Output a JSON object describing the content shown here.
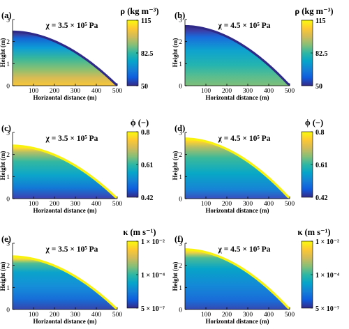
{
  "chart_data": [
    {
      "type": "heatmap",
      "panel_label": "(a)",
      "annotation": "χ = 3.5 × 10⁵ Pa",
      "ylabel": "Height (m)",
      "xlabel": "Horizontal distance (m)",
      "xlim": [
        0,
        500
      ],
      "ylim": [
        0,
        3
      ],
      "xticks": [
        "100",
        "200",
        "300",
        "400",
        "500"
      ],
      "yticks": [
        "0",
        "1",
        "2",
        "3"
      ],
      "surface_height": 2.45,
      "field": "density",
      "colorbar": {
        "title": "ρ (kg m⁻³)",
        "ticks": [
          "115",
          "82.5",
          "50"
        ],
        "range": [
          50,
          115
        ]
      }
    },
    {
      "type": "heatmap",
      "panel_label": "(b)",
      "annotation": "χ = 4.5 × 10⁵ Pa",
      "ylabel": "Height (m)",
      "xlabel": "Horizontal distance (m)",
      "xlim": [
        0,
        500
      ],
      "ylim": [
        0,
        3
      ],
      "xticks": [
        "100",
        "200",
        "300",
        "400",
        "500"
      ],
      "yticks": [
        "0",
        "1",
        "2",
        "3"
      ],
      "surface_height": 2.7,
      "field": "density",
      "colorbar": {
        "title": "ρ (kg m⁻³)",
        "ticks": [
          "115",
          "82.5",
          "50"
        ],
        "range": [
          50,
          115
        ]
      }
    },
    {
      "type": "heatmap",
      "panel_label": "(c)",
      "annotation": "χ = 3.5 × 10⁵ Pa",
      "ylabel": "Height (m)",
      "xlabel": "Horizontal distance (m)",
      "xlim": [
        0,
        500
      ],
      "ylim": [
        0,
        3
      ],
      "xticks": [
        "100",
        "200",
        "300",
        "400",
        "500"
      ],
      "yticks": [
        "0",
        "1",
        "2",
        "3"
      ],
      "surface_height": 2.4,
      "field": "porosity",
      "colorbar": {
        "title": "ϕ (−)",
        "ticks": [
          "0.8",
          "0.61",
          "0.42"
        ],
        "range": [
          0.42,
          0.8
        ]
      }
    },
    {
      "type": "heatmap",
      "panel_label": "(d)",
      "annotation": "χ = 4.5 × 10⁵ Pa",
      "ylabel": "Height (m)",
      "xlabel": "Horizontal distance (m)",
      "xlim": [
        0,
        500
      ],
      "ylim": [
        0,
        3
      ],
      "xticks": [
        "100",
        "200",
        "300",
        "400",
        "500"
      ],
      "yticks": [
        "0",
        "1",
        "2",
        "3"
      ],
      "surface_height": 2.72,
      "field": "porosity",
      "colorbar": {
        "title": "ϕ (−)",
        "ticks": [
          "0.8",
          "0.61",
          "0.42"
        ],
        "range": [
          0.42,
          0.8
        ]
      }
    },
    {
      "type": "heatmap",
      "panel_label": "(e)",
      "annotation": "χ = 3.5 × 10⁵ Pa",
      "ylabel": "Height (m)",
      "xlabel": "Horizontal distance (m)",
      "xlim": [
        0,
        500
      ],
      "ylim": [
        0,
        3
      ],
      "xticks": [
        "100",
        "200",
        "300",
        "400",
        "500"
      ],
      "yticks": [
        "0",
        "1",
        "2",
        "3"
      ],
      "surface_height": 2.4,
      "field": "conductivity",
      "colorbar": {
        "title": "κ (m s⁻¹)",
        "ticks": [
          "1 × 10⁻²",
          "1 × 10⁻⁴",
          "5 × 10⁻⁷"
        ],
        "range": [
          5e-07,
          0.01
        ],
        "scale": "log"
      }
    },
    {
      "type": "heatmap",
      "panel_label": "(f)",
      "annotation": "χ = 4.5 × 10⁵ Pa",
      "ylabel": "Height (m)",
      "xlabel": "Horizontal distance (m)",
      "xlim": [
        0,
        500
      ],
      "ylim": [
        0,
        3
      ],
      "xticks": [
        "100",
        "200",
        "300",
        "400",
        "500"
      ],
      "yticks": [
        "0",
        "1",
        "2",
        "3"
      ],
      "surface_height": 2.72,
      "field": "conductivity",
      "colorbar": {
        "title": "κ (m s⁻¹)",
        "ticks": [
          "1 × 10⁻²",
          "1 × 10⁻⁴",
          "5 × 10⁻⁷"
        ],
        "range": [
          5e-07,
          0.01
        ],
        "scale": "log"
      }
    }
  ]
}
